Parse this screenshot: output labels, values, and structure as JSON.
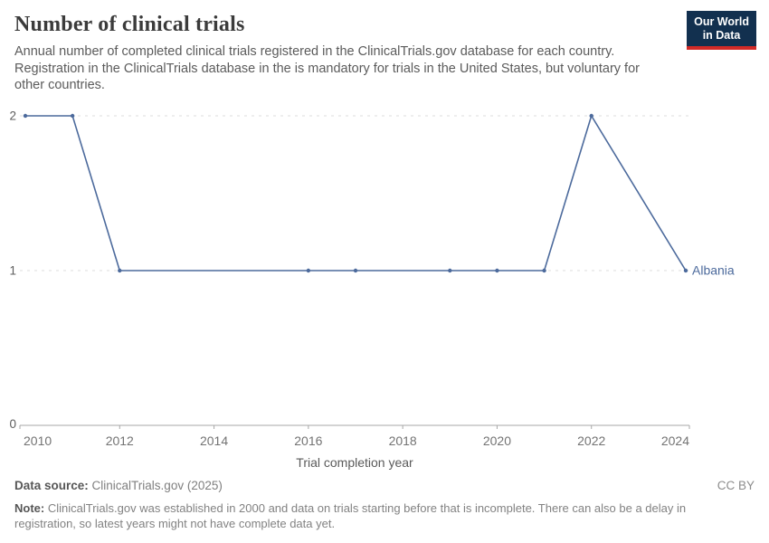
{
  "header": {
    "title": "Number of clinical trials",
    "subtitle": "Annual number of completed clinical trials registered in the ClinicalTrials.gov database for each country. Registration in the ClinicalTrials database in the is mandatory for trials in the United States, but voluntary for other countries.",
    "logo": {
      "line1": "Our World",
      "line2": "in Data"
    }
  },
  "chart_data": {
    "type": "line",
    "title": "Number of clinical trials",
    "xlabel": "Trial completion year",
    "ylabel": "",
    "xlim": [
      2010,
      2024
    ],
    "ylim": [
      0,
      2
    ],
    "x_ticks": [
      2010,
      2012,
      2014,
      2016,
      2018,
      2020,
      2022,
      2024
    ],
    "y_ticks": [
      0,
      1,
      2
    ],
    "grid": "horizontal-dashed",
    "legend_position": "line-end-label",
    "series": [
      {
        "name": "Albania",
        "color": "#4c6a9c",
        "x": [
          2010,
          2011,
          2012,
          2016,
          2017,
          2019,
          2020,
          2021,
          2022,
          2024
        ],
        "y": [
          2,
          2,
          1,
          1,
          1,
          1,
          1,
          1,
          2,
          1
        ]
      }
    ]
  },
  "footer": {
    "data_source_label": "Data source:",
    "data_source_value": "ClinicalTrials.gov (2025)",
    "license": "CC BY",
    "note_label": "Note:",
    "note_text": " ClinicalTrials.gov was established in 2000 and data on trials starting before that is incomplete. There can also be a delay in registration, so latest years might not have complete data yet."
  },
  "colors": {
    "accent_blue": "#4c6a9c",
    "logo_navy": "#12304f",
    "logo_red": "#d22a27",
    "grid": "#dcdcdc",
    "axis": "#a7a7a7"
  }
}
